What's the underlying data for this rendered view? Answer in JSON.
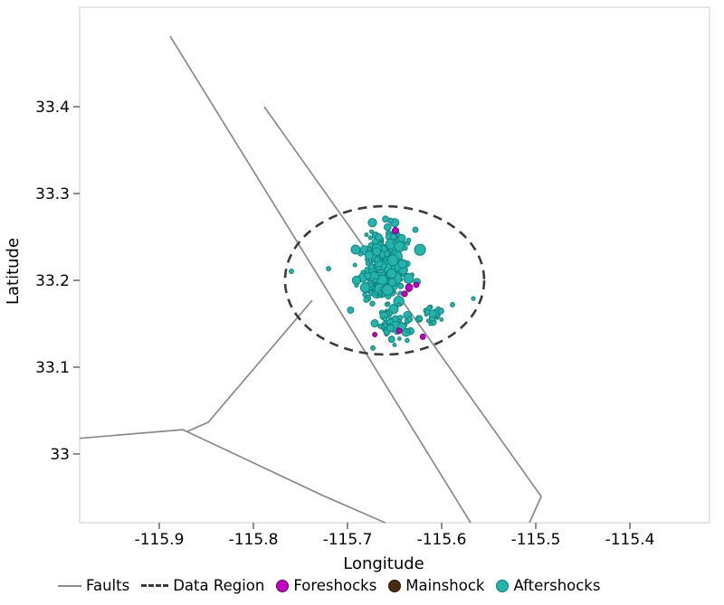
{
  "axes": {
    "xlabel": "Longitude",
    "ylabel": "Latitude"
  },
  "chart_data": {
    "type": "scatter",
    "title": "",
    "xlabel": "Longitude",
    "ylabel": "Latitude",
    "xlim": [
      -115.9846,
      -115.3154
    ],
    "ylim": [
      32.9208,
      33.5146
    ],
    "xticks": [
      -115.9,
      -115.8,
      -115.7,
      -115.6,
      -115.5,
      -115.4
    ],
    "yticks": [
      33,
      33.1,
      33.2,
      33.3,
      33.4
    ],
    "xtick_labels": [
      "-115.9",
      "-115.8",
      "-115.7",
      "-115.6",
      "-115.5",
      "-115.4"
    ],
    "ytick_labels": [
      "33",
      "33.1",
      "33.2",
      "33.3",
      "33.4"
    ],
    "grid": false,
    "legend_position": "bottom",
    "colors": {
      "fault": "#8a8a8a",
      "region": "#3a3a3a",
      "foreshock_fill": "#c000c0",
      "foreshock_edge": "#700070",
      "mainshock_fill": "#4a2a12",
      "mainshock_edge": "#241309",
      "aftershock_fill": "#24b3ad",
      "aftershock_edge": "#0e7f7a",
      "axis_text": "#000000",
      "tick": "#444444",
      "plot_border": "#cccccc"
    },
    "faults": [
      [
        [
          -115.8885,
          33.4813
        ],
        [
          -115.5692,
          32.9208
        ]
      ],
      [
        [
          -115.7885,
          33.4
        ],
        [
          -115.4942,
          32.951
        ],
        [
          -115.5067,
          32.9208
        ]
      ],
      [
        [
          -115.7375,
          33.177
        ],
        [
          -115.848,
          33.0365
        ],
        [
          -115.87,
          33.026
        ]
      ],
      [
        [
          -115.9846,
          33.018
        ],
        [
          -115.875,
          33.028
        ],
        [
          -115.726,
          32.952
        ],
        [
          -115.66,
          32.9208
        ]
      ]
    ],
    "data_region_ellipse": {
      "center": [
        -115.6606,
        33.2
      ],
      "rx": 0.1058,
      "ry": 0.0854,
      "dash": [
        10,
        7
      ],
      "stroke_width": 2.6
    },
    "mainshock": {
      "points": [
        [
          -115.656,
          33.205,
          6.5
        ]
      ]
    },
    "foreshocks": {
      "points": [
        [
          -115.649,
          33.2573,
          3.5
        ],
        [
          -115.6346,
          33.1917,
          4.0
        ],
        [
          -115.627,
          33.1948,
          3.0
        ],
        [
          -115.6394,
          33.1844,
          3.2
        ],
        [
          -115.645,
          33.1417,
          3.0
        ],
        [
          -115.62,
          33.135,
          3.0
        ],
        [
          -115.671,
          33.1375,
          2.5
        ]
      ]
    },
    "aftershocks": {
      "outliers": [
        [
          -115.7596,
          33.2104,
          2.5
        ],
        [
          -115.7202,
          33.2135,
          2.5
        ],
        [
          -115.5885,
          33.1719,
          2.5
        ],
        [
          -115.5663,
          33.179,
          2.2
        ],
        [
          -115.673,
          33.122,
          2.5
        ],
        [
          -115.6279,
          33.2583,
          3.0
        ]
      ],
      "clusters": [
        {
          "center": [
            -115.6587,
            33.2125
          ],
          "sigma": [
            0.0125,
            0.023
          ],
          "count": 260,
          "seed": 42,
          "size_range": [
            2.0,
            6.5
          ]
        },
        {
          "center": [
            -115.649,
            33.148
          ],
          "sigma": [
            0.0095,
            0.009
          ],
          "count": 40,
          "seed": 7,
          "size_range": [
            1.8,
            4.5
          ]
        },
        {
          "center": [
            -115.61,
            33.158
          ],
          "sigma": [
            0.0078,
            0.0072
          ],
          "count": 22,
          "seed": 13,
          "size_range": [
            1.8,
            4.2
          ]
        }
      ]
    }
  },
  "legend": {
    "items": [
      {
        "label": "Faults",
        "swatch": "line",
        "color_key": "fault"
      },
      {
        "label": "Data Region",
        "swatch": "dashed-line",
        "color_key": "region"
      },
      {
        "label": "Foreshocks",
        "swatch": "dot",
        "fill_key": "foreshock_fill",
        "edge_key": "foreshock_edge"
      },
      {
        "label": "Mainshock",
        "swatch": "dot",
        "fill_key": "mainshock_fill",
        "edge_key": "mainshock_edge"
      },
      {
        "label": "Aftershocks",
        "swatch": "dot",
        "fill_key": "aftershock_fill",
        "edge_key": "aftershock_edge"
      }
    ]
  }
}
